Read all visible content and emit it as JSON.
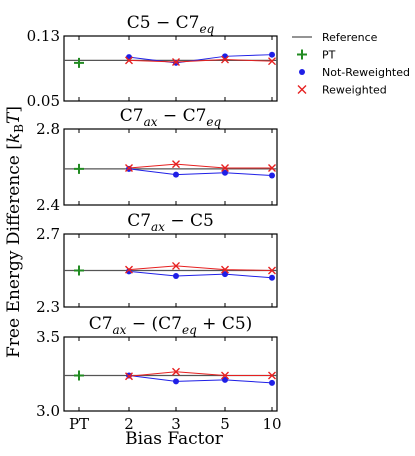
{
  "chart_data": {
    "type": "scatter",
    "ylabel": "Free Energy Difference [k_BT]",
    "ylabel_parts": {
      "main": "Free Energy Difference [",
      "k": "k",
      "sub": "B",
      "T": "T",
      "close": "]"
    },
    "xlabel": "Bias Factor",
    "categories": [
      "PT",
      "2",
      "3",
      "5",
      "10"
    ],
    "legend": {
      "position": "top-right",
      "entries": [
        {
          "name": "Reference",
          "marker": "line",
          "color": "#555555"
        },
        {
          "name": "PT",
          "marker": "plus",
          "color": "#228b22"
        },
        {
          "name": "Not-Reweighted",
          "marker": "dot",
          "color": "#1f1fe6"
        },
        {
          "name": "Reweighted",
          "marker": "x",
          "color": "#e62020"
        }
      ]
    },
    "panels": [
      {
        "title": "C5 − C7eq",
        "title_parts": {
          "a": "C5 − C7",
          "asub": "eq",
          "rest": "",
          "bsub": "",
          "tail": ""
        },
        "ylim": [
          0.05,
          0.13
        ],
        "yticks": [
          "0.13",
          "0.05"
        ],
        "reference": 0.1,
        "pt": 0.097,
        "not_reweighted": [
          0.104,
          0.097,
          0.105,
          0.107
        ],
        "reweighted": [
          0.1,
          0.098,
          0.101,
          0.099
        ]
      },
      {
        "title": "C7ax − C7eq",
        "title_parts": {
          "a": "C7",
          "asub": "ax",
          "rest": " − C7",
          "bsub": "eq",
          "tail": ""
        },
        "ylim": [
          2.4,
          2.8
        ],
        "yticks": [
          "2.8",
          "2.4"
        ],
        "reference": 2.59,
        "pt": 2.59,
        "not_reweighted": [
          2.59,
          2.56,
          2.57,
          2.555
        ],
        "reweighted": [
          2.595,
          2.615,
          2.595,
          2.595
        ]
      },
      {
        "title": "C7ax − C5",
        "title_parts": {
          "a": "C7",
          "asub": "ax",
          "rest": " − C5",
          "bsub": "",
          "tail": ""
        },
        "ylim": [
          2.3,
          2.7
        ],
        "yticks": [
          "2.7",
          "2.3"
        ],
        "reference": 2.5,
        "pt": 2.5,
        "not_reweighted": [
          2.495,
          2.47,
          2.48,
          2.46
        ],
        "reweighted": [
          2.505,
          2.525,
          2.505,
          2.5
        ]
      },
      {
        "title": "C7ax − (C7eq + C5)",
        "title_parts": {
          "a": "C7",
          "asub": "ax",
          "rest": " − (C7",
          "bsub": "eq",
          "tail": " + C5)"
        },
        "ylim": [
          3.0,
          3.5
        ],
        "yticks": [
          "3.5",
          "3.0"
        ],
        "reference": 3.24,
        "pt": 3.24,
        "not_reweighted": [
          3.24,
          3.2,
          3.21,
          3.19
        ],
        "reweighted": [
          3.235,
          3.265,
          3.24,
          3.24
        ]
      }
    ]
  }
}
